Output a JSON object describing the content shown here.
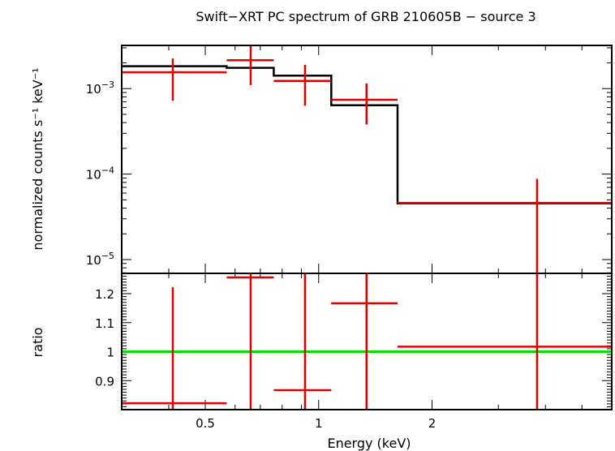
{
  "chart_data": {
    "type": "scatter",
    "title": "Swift−XRT PC spectrum of GRB 210605B − source 3",
    "xlabel": "Energy (keV)",
    "x_scale": "log",
    "xlim": [
      0.3,
      6.0
    ],
    "x_ticks": [
      {
        "value": 0.5,
        "label": "0.5"
      },
      {
        "value": 1,
        "label": "1"
      },
      {
        "value": 2,
        "label": "2"
      }
    ],
    "top_panel": {
      "ylabel": "normalized counts s⁻¹ keV⁻¹",
      "y_scale": "log",
      "ylim": [
        6.9e-06,
        0.0032
      ],
      "y_ticks": [
        {
          "value": 0.001,
          "base": "10",
          "exp": "−3"
        },
        {
          "value": 0.0001,
          "base": "10",
          "exp": "−4"
        },
        {
          "value": 1e-05,
          "base": "10",
          "exp": "−5"
        }
      ],
      "data": [
        {
          "xlo": 0.3,
          "xhi": 0.57,
          "x": 0.41,
          "y": 0.00155,
          "ylo": 0.00072,
          "yhi": 0.00225
        },
        {
          "xlo": 0.57,
          "xhi": 0.76,
          "x": 0.66,
          "y": 0.00215,
          "ylo": 0.0011,
          "yhi": 0.0032
        },
        {
          "xlo": 0.76,
          "xhi": 1.08,
          "x": 0.92,
          "y": 0.00123,
          "ylo": 0.00063,
          "yhi": 0.0019
        },
        {
          "xlo": 1.08,
          "xhi": 1.62,
          "x": 1.34,
          "y": 0.00074,
          "ylo": 0.00038,
          "yhi": 0.00115
        },
        {
          "xlo": 1.62,
          "xhi": 6.0,
          "x": 3.8,
          "y": 4.6e-05,
          "ylo": 6.5e-06,
          "yhi": 8.8e-05
        }
      ],
      "model": [
        {
          "xlo": 0.3,
          "xhi": 0.57,
          "y": 0.00183
        },
        {
          "xlo": 0.57,
          "xhi": 0.76,
          "y": 0.00175
        },
        {
          "xlo": 0.76,
          "xhi": 1.08,
          "y": 0.00142
        },
        {
          "xlo": 1.08,
          "xhi": 1.62,
          "y": 0.00064
        },
        {
          "xlo": 1.62,
          "xhi": 6.0,
          "y": 4.55e-05
        }
      ]
    },
    "bottom_panel": {
      "ylabel": "ratio",
      "ylim": [
        0.8,
        1.27
      ],
      "y_ticks": [
        {
          "value": 0.9,
          "label": "0.9"
        },
        {
          "value": 1.0,
          "label": "1"
        },
        {
          "value": 1.1,
          "label": "1.1"
        },
        {
          "value": 1.2,
          "label": "1.2"
        }
      ],
      "reference": 1.0,
      "data": [
        {
          "xlo": 0.3,
          "xhi": 0.57,
          "x": 0.41,
          "y": 0.822,
          "ylo": 0.8,
          "yhi": 1.222
        },
        {
          "xlo": 0.57,
          "xhi": 0.76,
          "x": 0.66,
          "y": 1.256,
          "ylo": 0.8,
          "yhi": 1.27
        },
        {
          "xlo": 0.76,
          "xhi": 1.08,
          "x": 0.92,
          "y": 0.867,
          "ylo": 0.8,
          "yhi": 1.27
        },
        {
          "xlo": 1.08,
          "xhi": 1.62,
          "x": 1.34,
          "y": 1.167,
          "ylo": 0.8,
          "yhi": 1.27
        },
        {
          "xlo": 1.62,
          "xhi": 6.0,
          "x": 3.8,
          "y": 1.017,
          "ylo": 0.8,
          "yhi": 1.27
        }
      ]
    },
    "colors": {
      "data": "#e00000",
      "model": "#000000",
      "reference": "#00e000"
    }
  }
}
